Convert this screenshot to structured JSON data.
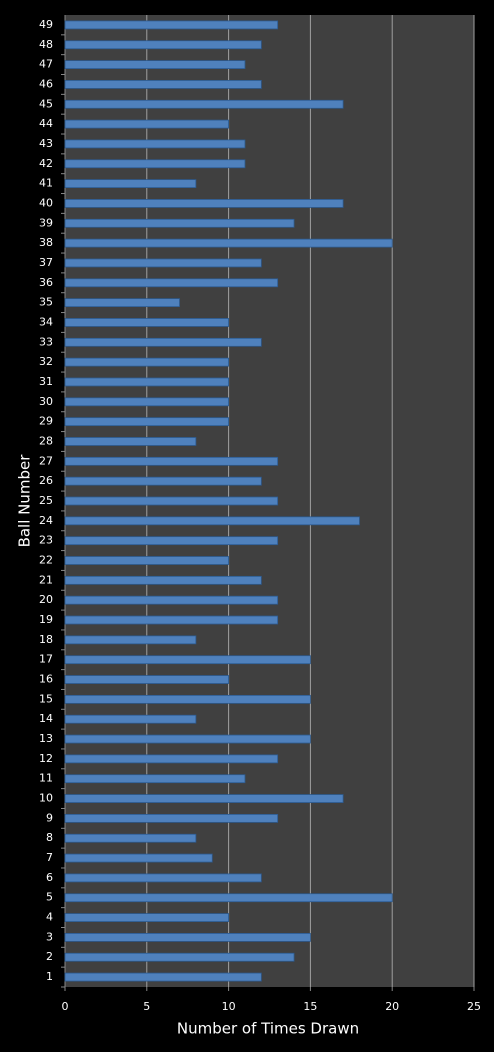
{
  "chart_data": {
    "type": "bar",
    "orientation": "horizontal",
    "x_label": "Number of Times Drawn",
    "y_label": "Ball Number",
    "categories": [
      "1",
      "2",
      "3",
      "4",
      "5",
      "6",
      "7",
      "8",
      "9",
      "10",
      "11",
      "12",
      "13",
      "14",
      "15",
      "16",
      "17",
      "18",
      "19",
      "20",
      "21",
      "22",
      "23",
      "24",
      "25",
      "26",
      "27",
      "28",
      "29",
      "30",
      "31",
      "32",
      "33",
      "34",
      "35",
      "36",
      "37",
      "38",
      "39",
      "40",
      "41",
      "42",
      "43",
      "44",
      "45",
      "46",
      "47",
      "48",
      "49"
    ],
    "values": [
      12,
      14,
      15,
      10,
      20,
      12,
      9,
      8,
      13,
      17,
      11,
      13,
      15,
      8,
      15,
      10,
      15,
      8,
      13,
      13,
      12,
      10,
      13,
      18,
      13,
      12,
      13,
      8,
      10,
      10,
      10,
      10,
      12,
      10,
      7,
      13,
      12,
      20,
      14,
      17,
      8,
      11,
      11,
      10,
      17,
      12,
      11,
      12,
      13
    ],
    "color": "#4f81bd",
    "xlim": [
      0,
      25
    ],
    "xticks": [
      0,
      5,
      10,
      15,
      20,
      25
    ],
    "grid": true
  }
}
